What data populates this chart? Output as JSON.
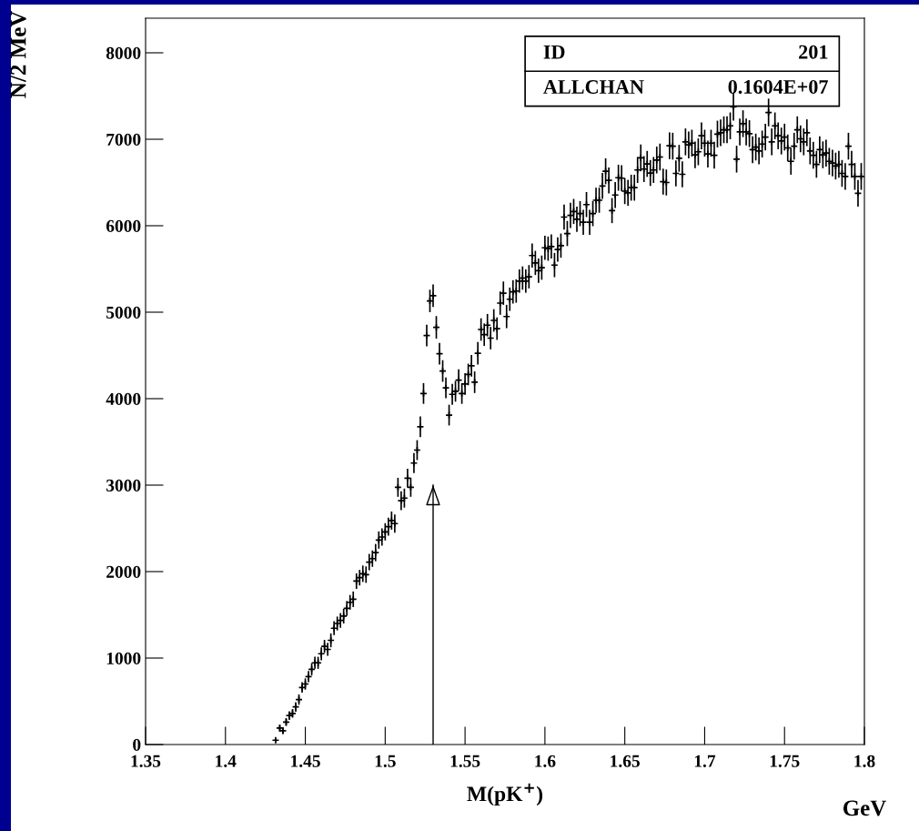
{
  "chart_data": {
    "type": "scatter",
    "xlabel": "M(pK$^{+}$)",
    "ylabel": "N/2 MeV",
    "annotations": [
      "ID",
      "201",
      "ALLCHAN",
      "0.1604E+07",
      "GeV"
    ],
    "xlim": [
      1.35,
      1.8
    ],
    "ylim": [
      0,
      8400
    ],
    "xticks": [
      1.35,
      1.4,
      1.45,
      1.5,
      1.55,
      1.6,
      1.65,
      1.7,
      1.75,
      1.8
    ],
    "yticks": [
      0,
      1000,
      2000,
      3000,
      4000,
      5000,
      6000,
      7000,
      8000
    ],
    "marker": "cross",
    "grid": false,
    "legend": false,
    "series": [
      {
        "type": "line",
        "color": "#000000",
        "marker": "none",
        "x": [
          1.53,
          1.53
        ],
        "values": [
          0,
          3000
        ]
      },
      {
        "color": "#000000",
        "x": [
          1.4314,
          1.434,
          1.436,
          1.438,
          1.44,
          1.442,
          1.444,
          1.446,
          1.448,
          1.45,
          1.452,
          1.454,
          1.456,
          1.458,
          1.46,
          1.462,
          1.464,
          1.466,
          1.468,
          1.47,
          1.472,
          1.474,
          1.476,
          1.478,
          1.48,
          1.482,
          1.484,
          1.486,
          1.488,
          1.49,
          1.492,
          1.494,
          1.496,
          1.498,
          1.5,
          1.502,
          1.504,
          1.506,
          1.508,
          1.51,
          1.512,
          1.514,
          1.516,
          1.518,
          1.52,
          1.522,
          1.524,
          1.526,
          1.528,
          1.53,
          1.532,
          1.534,
          1.536,
          1.538,
          1.54,
          1.542,
          1.544,
          1.546,
          1.548,
          1.55,
          1.552,
          1.554,
          1.556,
          1.558,
          1.56,
          1.562,
          1.564,
          1.566,
          1.568,
          1.57,
          1.572,
          1.574,
          1.576,
          1.578,
          1.58,
          1.582,
          1.584,
          1.586,
          1.588,
          1.59,
          1.592,
          1.594,
          1.596,
          1.598,
          1.6,
          1.602,
          1.604,
          1.606,
          1.608,
          1.61,
          1.612,
          1.614,
          1.616,
          1.618,
          1.62,
          1.622,
          1.624,
          1.626,
          1.628,
          1.63,
          1.632,
          1.634,
          1.636,
          1.638,
          1.64,
          1.642,
          1.644,
          1.646,
          1.648,
          1.65,
          1.652,
          1.654,
          1.656,
          1.658,
          1.66,
          1.662,
          1.664,
          1.666,
          1.668,
          1.67,
          1.672,
          1.674,
          1.676,
          1.678,
          1.68,
          1.682,
          1.684,
          1.686,
          1.688,
          1.69,
          1.692,
          1.694,
          1.696,
          1.698,
          1.7,
          1.702,
          1.704,
          1.706,
          1.708,
          1.71,
          1.712,
          1.714,
          1.716,
          1.718,
          1.72,
          1.722,
          1.724,
          1.726,
          1.728,
          1.73,
          1.732,
          1.734,
          1.736,
          1.738,
          1.74,
          1.742,
          1.744,
          1.746,
          1.748,
          1.75,
          1.752,
          1.754,
          1.756,
          1.758,
          1.76,
          1.762,
          1.764,
          1.766,
          1.768,
          1.77,
          1.772,
          1.774,
          1.776,
          1.778,
          1.78,
          1.782,
          1.784,
          1.786,
          1.788,
          1.79,
          1.792,
          1.794,
          1.796,
          1.798
        ],
        "values": [
          50,
          190,
          160,
          260,
          335,
          360,
          435,
          520,
          660,
          700,
          785,
          870,
          945,
          945,
          1050,
          1135,
          1100,
          1205,
          1345,
          1400,
          1435,
          1485,
          1575,
          1645,
          1680,
          1890,
          1930,
          1975,
          1965,
          2110,
          2150,
          2220,
          2365,
          2400,
          2460,
          2520,
          2590,
          2555,
          2975,
          2820,
          2850,
          3080,
          2975,
          3255,
          3405,
          3675,
          4060,
          4730,
          5130,
          5190,
          4825,
          4520,
          4320,
          4125,
          3810,
          4050,
          4085,
          4215,
          4060,
          4170,
          4280,
          4380,
          4190,
          4525,
          4800,
          4740,
          4850,
          4700,
          4905,
          4810,
          5105,
          5220,
          4950,
          5150,
          5235,
          5245,
          5360,
          5395,
          5360,
          5410,
          5655,
          5570,
          5480,
          5515,
          5745,
          5735,
          5760,
          5545,
          5725,
          5770,
          6100,
          5910,
          6120,
          6165,
          6075,
          6140,
          6040,
          6245,
          6040,
          6140,
          6295,
          6295,
          6460,
          6630,
          6525,
          6175,
          6355,
          6555,
          6550,
          6400,
          6380,
          6440,
          6440,
          6645,
          6785,
          6655,
          6715,
          6610,
          6645,
          6760,
          6795,
          6510,
          6500,
          6925,
          6920,
          6605,
          6780,
          6595,
          6970,
          6935,
          6955,
          6820,
          6855,
          7040,
          6955,
          6830,
          6955,
          6815,
          7060,
          7075,
          7110,
          7110,
          7155,
          7375,
          6770,
          7085,
          7180,
          7085,
          7065,
          6880,
          6910,
          6865,
          6945,
          7025,
          7310,
          6970,
          7155,
          7040,
          6980,
          7025,
          6900,
          6745,
          6920,
          7110,
          7005,
          6970,
          7075,
          6865,
          6815,
          6710,
          6880,
          6820,
          6840,
          6745,
          6725,
          6690,
          6710,
          6605,
          6570,
          6920,
          6710,
          6570,
          6375,
          6570
        ],
        "errors": [
          20,
          40,
          40,
          45,
          50,
          50,
          55,
          60,
          60,
          65,
          65,
          70,
          70,
          70,
          75,
          75,
          75,
          80,
          80,
          80,
          85,
          85,
          85,
          85,
          90,
          90,
          90,
          95,
          95,
          95,
          95,
          100,
          100,
          100,
          100,
          105,
          105,
          105,
          110,
          110,
          110,
          110,
          110,
          115,
          115,
          120,
          120,
          125,
          130,
          130,
          130,
          125,
          125,
          120,
          120,
          120,
          120,
          125,
          120,
          125,
          125,
          125,
          125,
          130,
          130,
          130,
          130,
          130,
          130,
          130,
          135,
          135,
          135,
          135,
          135,
          135,
          135,
          135,
          135,
          135,
          140,
          140,
          140,
          140,
          140,
          140,
          140,
          140,
          140,
          140,
          145,
          145,
          145,
          145,
          145,
          145,
          145,
          145,
          145,
          145,
          145,
          145,
          150,
          150,
          150,
          145,
          150,
          150,
          150,
          150,
          150,
          150,
          150,
          150,
          155,
          150,
          150,
          150,
          150,
          155,
          155,
          150,
          150,
          155,
          155,
          150,
          155,
          150,
          155,
          155,
          155,
          155,
          155,
          155,
          155,
          155,
          155,
          155,
          155,
          155,
          155,
          155,
          155,
          160,
          155,
          155,
          155,
          155,
          155,
          155,
          155,
          155,
          155,
          155,
          160,
          155,
          155,
          155,
          155,
          155,
          155,
          155,
          155,
          155,
          155,
          155,
          155,
          155,
          155,
          155,
          155,
          155,
          155,
          155,
          155,
          155,
          155,
          155,
          155,
          155,
          155,
          155,
          155,
          155
        ]
      }
    ]
  }
}
